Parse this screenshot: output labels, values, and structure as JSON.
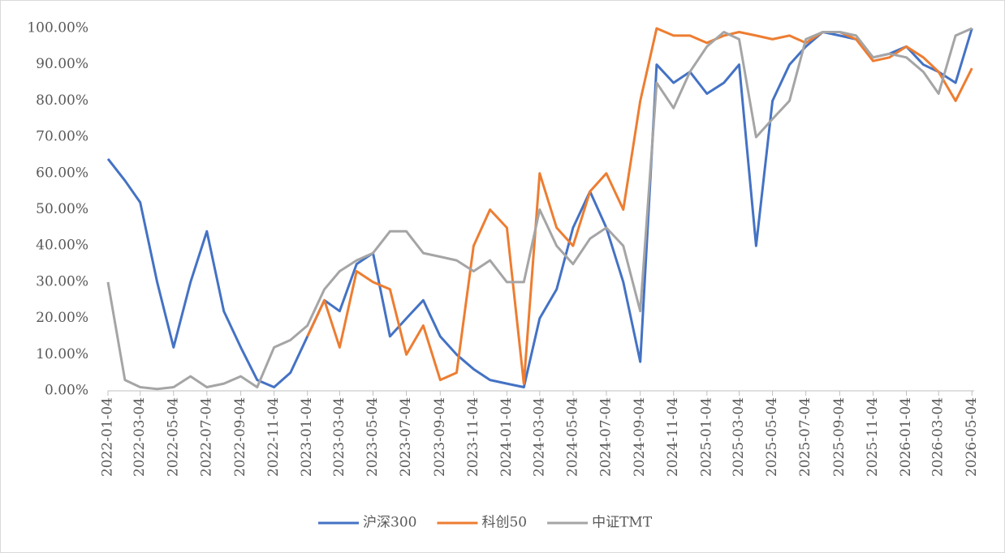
{
  "chart_data": {
    "type": "line",
    "x": [
      "2022-01-04",
      "2022-02-04",
      "2022-03-04",
      "2022-04-04",
      "2022-05-04",
      "2022-06-04",
      "2022-07-04",
      "2022-08-04",
      "2022-09-04",
      "2022-10-04",
      "2022-11-04",
      "2022-12-04",
      "2023-01-04",
      "2023-02-04",
      "2023-03-04",
      "2023-04-04",
      "2023-05-04",
      "2023-06-04",
      "2023-07-04",
      "2023-08-04",
      "2023-09-04",
      "2023-10-04",
      "2023-11-04",
      "2023-12-04",
      "2024-01-04",
      "2024-02-04",
      "2024-03-04",
      "2024-04-04",
      "2024-05-04",
      "2024-06-04",
      "2024-07-04",
      "2024-08-04",
      "2024-09-04",
      "2024-10-04",
      "2024-11-04",
      "2024-12-04",
      "2025-01-04",
      "2025-02-04",
      "2025-03-04",
      "2025-04-04",
      "2025-05-04",
      "2025-06-04",
      "2025-07-04",
      "2025-08-04",
      "2025-09-04",
      "2025-10-04",
      "2025-11-04",
      "2025-12-04",
      "2026-01-04",
      "2026-02-04",
      "2026-03-04",
      "2026-04-04",
      "2026-05-04"
    ],
    "series": [
      {
        "name": "沪深300",
        "color": "#4472c4",
        "values": [
          64,
          58,
          52,
          30,
          12,
          30,
          44,
          22,
          12,
          3,
          1,
          5,
          15,
          25,
          22,
          35,
          38,
          15,
          20,
          25,
          15,
          10,
          6,
          3,
          2,
          1,
          20,
          28,
          45,
          55,
          45,
          30,
          8,
          90,
          85,
          88,
          82,
          85,
          90,
          40,
          80,
          90,
          95,
          99,
          98,
          97,
          92,
          93,
          95,
          90,
          88,
          85,
          100
        ]
      },
      {
        "name": "科创50",
        "color": "#ed7d31",
        "values": [
          null,
          null,
          null,
          null,
          null,
          null,
          null,
          null,
          null,
          null,
          null,
          null,
          15,
          25,
          12,
          33,
          30,
          28,
          10,
          18,
          3,
          5,
          40,
          50,
          45,
          2,
          60,
          45,
          40,
          55,
          60,
          50,
          80,
          100,
          98,
          98,
          96,
          98,
          99,
          98,
          97,
          98,
          96,
          99,
          99,
          97,
          91,
          92,
          95,
          92,
          88,
          80,
          89
        ]
      },
      {
        "name": "中证TMT",
        "color": "#a5a5a5",
        "values": [
          30,
          3,
          1,
          0.5,
          1,
          4,
          1,
          2,
          4,
          1,
          12,
          14,
          18,
          28,
          33,
          36,
          38,
          44,
          44,
          38,
          37,
          36,
          33,
          36,
          30,
          30,
          50,
          40,
          35,
          42,
          45,
          40,
          22,
          85,
          78,
          88,
          95,
          99,
          97,
          70,
          75,
          80,
          97,
          99,
          99,
          98,
          92,
          93,
          92,
          88,
          82,
          98,
          100
        ]
      }
    ],
    "xlim": [
      "2022-01-04",
      "2026-05-08"
    ],
    "xticks": [
      "2022-01-04",
      "2022-03-04",
      "2022-05-04",
      "2022-07-04",
      "2022-09-04",
      "2022-11-04",
      "2023-01-04",
      "2023-03-04",
      "2023-05-04",
      "2023-07-04",
      "2023-09-04",
      "2023-11-04",
      "2024-01-04",
      "2024-03-04",
      "2024-05-04",
      "2024-07-04",
      "2024-09-04",
      "2024-11-04",
      "2025-01-04",
      "2025-03-04",
      "2025-05-04",
      "2025-07-04",
      "2025-09-04",
      "2025-11-04",
      "2026-01-04",
      "2026-03-04",
      "2026-05-04"
    ],
    "ylim": [
      0,
      100
    ],
    "yticks": [
      {
        "value": 0,
        "label": "0.00%"
      },
      {
        "value": 10,
        "label": "10.00%"
      },
      {
        "value": 20,
        "label": "20.00%"
      },
      {
        "value": 30,
        "label": "30.00%"
      },
      {
        "value": 40,
        "label": "40.00%"
      },
      {
        "value": 50,
        "label": "50.00%"
      },
      {
        "value": 60,
        "label": "60.00%"
      },
      {
        "value": 70,
        "label": "70.00%"
      },
      {
        "value": 80,
        "label": "80.00%"
      },
      {
        "value": 90,
        "label": "90.00%"
      },
      {
        "value": 100,
        "label": "100.00%"
      }
    ],
    "grid": false,
    "legend": "bottom"
  }
}
